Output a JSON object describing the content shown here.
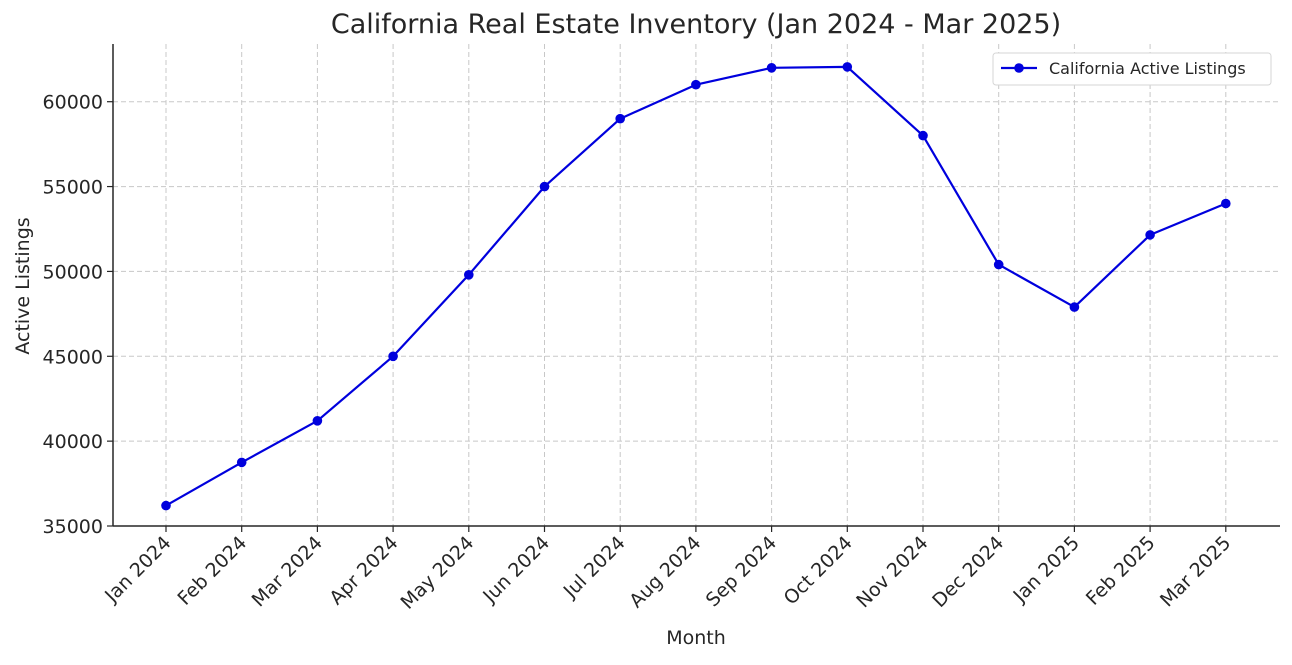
{
  "chart_data": {
    "type": "line",
    "title": "California Real Estate Inventory (Jan 2024 - Mar 2025)",
    "xlabel": "Month",
    "ylabel": "Active Listings",
    "categories": [
      "Jan 2024",
      "Feb 2024",
      "Mar 2024",
      "Apr 2024",
      "May 2024",
      "Jun 2024",
      "Jul 2024",
      "Aug 2024",
      "Sep 2024",
      "Oct 2024",
      "Nov 2024",
      "Dec 2024",
      "Jan 2025",
      "Feb 2025",
      "Mar 2025"
    ],
    "series": [
      {
        "name": "California Active Listings",
        "color": "#0000dd",
        "marker": "circle",
        "values": [
          36200,
          38750,
          41200,
          45000,
          49800,
          55000,
          59000,
          61000,
          62000,
          62050,
          58000,
          50400,
          47900,
          52150,
          54000
        ]
      }
    ],
    "ylim": [
      35000,
      63400
    ],
    "yticks": [
      35000,
      40000,
      45000,
      50000,
      55000,
      60000
    ],
    "grid": true,
    "legend_position": "top-right"
  }
}
